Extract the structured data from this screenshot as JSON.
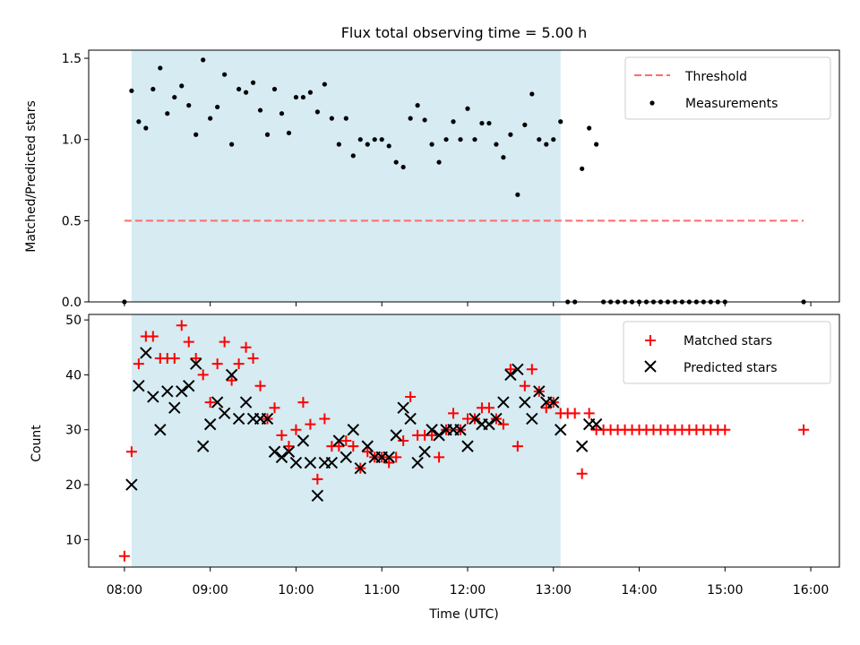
{
  "title": "Flux total observing time = 5.00 h",
  "colors": {
    "shade": "#add8e6",
    "threshold": "#ff6b6b",
    "measurement": "#000000",
    "matched": "#ff0000",
    "predicted": "#000000"
  },
  "chart_data": [
    {
      "type": "scatter",
      "ylabel": "Matched/Predicted stars",
      "ylim": [
        0,
        1.55
      ],
      "yticks": [
        0.0,
        0.5,
        1.0,
        1.5
      ],
      "ytick_labels": [
        "0.0",
        "0.5",
        "1.0",
        "1.5"
      ],
      "shaded_span": [
        "08:05",
        "13:05"
      ],
      "legend": {
        "position": "top-right",
        "entries": [
          "Threshold",
          "Measurements"
        ]
      },
      "threshold": {
        "name": "Threshold",
        "y": 0.5,
        "x_range": [
          "08:00",
          "15:55"
        ],
        "style": "dashed"
      },
      "series": [
        {
          "name": "Measurements",
          "x": [
            "08:00",
            "08:05",
            "08:10",
            "08:15",
            "08:20",
            "08:25",
            "08:30",
            "08:35",
            "08:40",
            "08:45",
            "08:50",
            "08:55",
            "09:00",
            "09:05",
            "09:10",
            "09:15",
            "09:20",
            "09:25",
            "09:30",
            "09:35",
            "09:40",
            "09:45",
            "09:50",
            "09:55",
            "10:00",
            "10:05",
            "10:10",
            "10:15",
            "10:20",
            "10:25",
            "10:30",
            "10:35",
            "10:40",
            "10:45",
            "10:50",
            "10:55",
            "11:00",
            "11:05",
            "11:10",
            "11:15",
            "11:20",
            "11:25",
            "11:30",
            "11:35",
            "11:40",
            "11:45",
            "11:50",
            "11:55",
            "12:00",
            "12:05",
            "12:10",
            "12:15",
            "12:20",
            "12:25",
            "12:30",
            "12:35",
            "12:40",
            "12:45",
            "12:50",
            "12:55",
            "13:00",
            "13:05",
            "13:10",
            "13:15",
            "13:20",
            "13:25",
            "13:30",
            "13:35",
            "13:40",
            "13:45",
            "13:50",
            "13:55",
            "14:00",
            "14:05",
            "14:10",
            "14:15",
            "14:20",
            "14:25",
            "14:30",
            "14:35",
            "14:40",
            "14:45",
            "14:50",
            "14:55",
            "15:00",
            "15:55"
          ],
          "y": [
            0.0,
            1.3,
            1.11,
            1.07,
            1.31,
            1.44,
            1.16,
            1.26,
            1.33,
            1.21,
            1.03,
            1.49,
            1.13,
            1.2,
            1.4,
            0.97,
            1.31,
            1.29,
            1.35,
            1.18,
            1.03,
            1.31,
            1.16,
            1.04,
            1.26,
            1.26,
            1.29,
            1.17,
            1.34,
            1.13,
            0.97,
            1.13,
            0.9,
            1.0,
            0.97,
            1.0,
            1.0,
            0.96,
            0.86,
            0.83,
            1.13,
            1.21,
            1.12,
            0.97,
            0.86,
            1.0,
            1.11,
            1.0,
            1.19,
            1.0,
            1.1,
            1.1,
            0.97,
            0.89,
            1.03,
            0.66,
            1.09,
            1.28,
            1.0,
            0.97,
            1.0,
            1.11,
            0.0,
            0.0,
            0.82,
            1.07,
            0.97,
            0.0,
            0.0,
            0.0,
            0.0,
            0.0,
            0.0,
            0.0,
            0.0,
            0.0,
            0.0,
            0.0,
            0.0,
            0.0,
            0.0,
            0.0,
            0.0,
            0.0,
            0.0,
            0.0
          ]
        }
      ]
    },
    {
      "type": "scatter",
      "ylabel": "Count",
      "xlabel": "Time (UTC)",
      "ylim": [
        5,
        51
      ],
      "yticks": [
        10,
        20,
        30,
        40,
        50
      ],
      "ytick_labels": [
        "10",
        "20",
        "30",
        "40",
        "50"
      ],
      "xlim": [
        "07:35",
        "16:20"
      ],
      "xticks": [
        "08:00",
        "09:00",
        "10:00",
        "11:00",
        "12:00",
        "13:00",
        "14:00",
        "15:00",
        "16:00"
      ],
      "shaded_span": [
        "08:05",
        "13:05"
      ],
      "legend": {
        "position": "top-right",
        "entries": [
          "Matched stars",
          "Predicted stars"
        ]
      },
      "series": [
        {
          "name": "Matched stars",
          "marker": "+",
          "x": [
            "08:00",
            "08:05",
            "08:10",
            "08:15",
            "08:20",
            "08:25",
            "08:30",
            "08:35",
            "08:40",
            "08:45",
            "08:50",
            "08:55",
            "09:00",
            "09:05",
            "09:10",
            "09:15",
            "09:20",
            "09:25",
            "09:30",
            "09:35",
            "09:40",
            "09:45",
            "09:50",
            "09:55",
            "10:00",
            "10:05",
            "10:10",
            "10:15",
            "10:20",
            "10:25",
            "10:30",
            "10:35",
            "10:40",
            "10:45",
            "10:50",
            "10:55",
            "11:00",
            "11:05",
            "11:10",
            "11:15",
            "11:20",
            "11:25",
            "11:30",
            "11:35",
            "11:40",
            "11:45",
            "11:50",
            "11:55",
            "12:00",
            "12:05",
            "12:10",
            "12:15",
            "12:20",
            "12:25",
            "12:30",
            "12:35",
            "12:40",
            "12:45",
            "12:50",
            "12:55",
            "13:00",
            "13:05",
            "13:10",
            "13:15",
            "13:20",
            "13:25",
            "13:30",
            "13:35",
            "13:40",
            "13:45",
            "13:50",
            "13:55",
            "14:00",
            "14:05",
            "14:10",
            "14:15",
            "14:20",
            "14:25",
            "14:30",
            "14:35",
            "14:40",
            "14:45",
            "14:50",
            "14:55",
            "15:00",
            "15:55"
          ],
          "y": [
            7,
            26,
            42,
            47,
            47,
            43,
            43,
            43,
            49,
            46,
            43,
            40,
            35,
            42,
            46,
            39,
            42,
            45,
            43,
            38,
            32,
            34,
            29,
            27,
            30,
            35,
            31,
            21,
            32,
            27,
            27,
            28,
            27,
            23,
            26,
            25,
            25,
            24,
            25,
            28,
            36,
            29,
            29,
            29,
            25,
            30,
            33,
            30,
            32,
            32,
            34,
            34,
            32,
            31,
            41,
            27,
            38,
            41,
            37,
            34,
            35,
            33,
            33,
            33,
            22,
            33,
            30,
            30,
            30,
            30,
            30,
            30,
            30,
            30,
            30,
            30,
            30,
            30,
            30,
            30,
            30,
            30,
            30,
            30,
            30,
            30
          ]
        },
        {
          "name": "Predicted stars",
          "marker": "x",
          "x": [
            "08:05",
            "08:10",
            "08:15",
            "08:20",
            "08:25",
            "08:30",
            "08:35",
            "08:40",
            "08:45",
            "08:50",
            "08:55",
            "09:00",
            "09:05",
            "09:10",
            "09:15",
            "09:20",
            "09:25",
            "09:30",
            "09:35",
            "09:40",
            "09:45",
            "09:50",
            "09:55",
            "10:00",
            "10:05",
            "10:10",
            "10:15",
            "10:20",
            "10:25",
            "10:30",
            "10:35",
            "10:40",
            "10:45",
            "10:50",
            "10:55",
            "11:00",
            "11:05",
            "11:10",
            "11:15",
            "11:20",
            "11:25",
            "11:30",
            "11:35",
            "11:40",
            "11:45",
            "11:50",
            "11:55",
            "12:00",
            "12:05",
            "12:10",
            "12:15",
            "12:20",
            "12:25",
            "12:30",
            "12:35",
            "12:40",
            "12:45",
            "12:50",
            "12:55",
            "13:00",
            "13:05",
            "13:20",
            "13:25",
            "13:30"
          ],
          "y": [
            20,
            38,
            44,
            36,
            30,
            37,
            34,
            37,
            38,
            42,
            27,
            31,
            35,
            33,
            40,
            32,
            35,
            32,
            32,
            32,
            26,
            25,
            26,
            24,
            28,
            24,
            18,
            24,
            24,
            28,
            25,
            30,
            23,
            27,
            25,
            25,
            25,
            29,
            34,
            32,
            24,
            26,
            30,
            29,
            30,
            30,
            30,
            27,
            32,
            31,
            31,
            32,
            35,
            40,
            41,
            35,
            32,
            37,
            35,
            35,
            30,
            27,
            31,
            31
          ]
        }
      ]
    }
  ]
}
